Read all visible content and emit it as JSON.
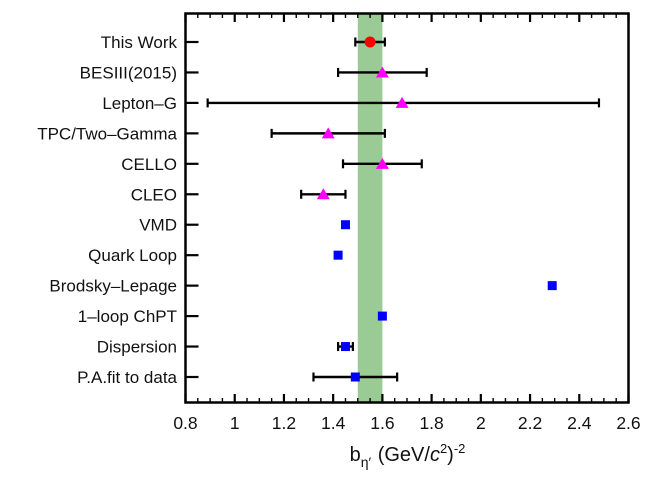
{
  "figure": {
    "background": "#ffffff",
    "frame_color": "#000000",
    "text_color": "#111111"
  },
  "chart_data": {
    "type": "scatter",
    "orientation": "horizontal-categories",
    "title": "",
    "xlabel_plain": "b_eta' (GeV/c2)^-2",
    "xlabel_parts": {
      "base": "b",
      "sub": "η′",
      "unit_open": "(GeV/",
      "c": "c",
      "c_exp": "2",
      "unit_close": ")",
      "exp": "-2"
    },
    "xlim": [
      0.8,
      2.6
    ],
    "x_tick_values": [
      0.8,
      1,
      1.2,
      1.4,
      1.6,
      1.8,
      2,
      2.2,
      2.4,
      2.6
    ],
    "x_tick_labels": [
      "0.8",
      "1",
      "1.2",
      "1.4",
      "1.6",
      "1.8",
      "2",
      "2.2",
      "2.4",
      "2.6"
    ],
    "x_minor_step": 0.05,
    "grid": false,
    "legend": false,
    "band": {
      "from": 1.5,
      "to": 1.6,
      "color": "#9bcb94"
    },
    "marker_colors": {
      "this_work": "#ff0000",
      "experiment": "#ff00ff",
      "theory": "#0000ff"
    },
    "points": [
      {
        "label": "This Work",
        "value": 1.55,
        "err_minus": 0.06,
        "err_plus": 0.06,
        "marker": "circle",
        "color": "#ff0000"
      },
      {
        "label": "BESIII(2015)",
        "value": 1.6,
        "err_minus": 0.18,
        "err_plus": 0.18,
        "marker": "triangle",
        "color": "#ff00ff"
      },
      {
        "label": "Lepton–G",
        "value": 1.68,
        "err_minus": 0.79,
        "err_plus": 0.8,
        "marker": "triangle",
        "color": "#ff00ff"
      },
      {
        "label": "TPC/Two–Gamma",
        "value": 1.38,
        "err_minus": 0.23,
        "err_plus": 0.23,
        "marker": "triangle",
        "color": "#ff00ff"
      },
      {
        "label": "CELLO",
        "value": 1.6,
        "err_minus": 0.16,
        "err_plus": 0.16,
        "marker": "triangle",
        "color": "#ff00ff"
      },
      {
        "label": "CLEO",
        "value": 1.36,
        "err_minus": 0.09,
        "err_plus": 0.09,
        "marker": "triangle",
        "color": "#ff00ff"
      },
      {
        "label": "VMD",
        "value": 1.45,
        "err_minus": 0,
        "err_plus": 0,
        "marker": "square",
        "color": "#0000ff"
      },
      {
        "label": "Quark Loop",
        "value": 1.42,
        "err_minus": 0,
        "err_plus": 0,
        "marker": "square",
        "color": "#0000ff"
      },
      {
        "label": "Brodsky–Lepage",
        "value": 2.29,
        "err_minus": 0,
        "err_plus": 0,
        "marker": "square",
        "color": "#0000ff"
      },
      {
        "label": "1–loop ChPT",
        "value": 1.6,
        "err_minus": 0,
        "err_plus": 0,
        "marker": "square",
        "color": "#0000ff"
      },
      {
        "label": "Dispersion",
        "value": 1.45,
        "err_minus": 0.03,
        "err_plus": 0.03,
        "marker": "square",
        "color": "#0000ff"
      },
      {
        "label": "P.A.fit to data",
        "value": 1.49,
        "err_minus": 0.17,
        "err_plus": 0.17,
        "marker": "square",
        "color": "#0000ff"
      }
    ]
  }
}
